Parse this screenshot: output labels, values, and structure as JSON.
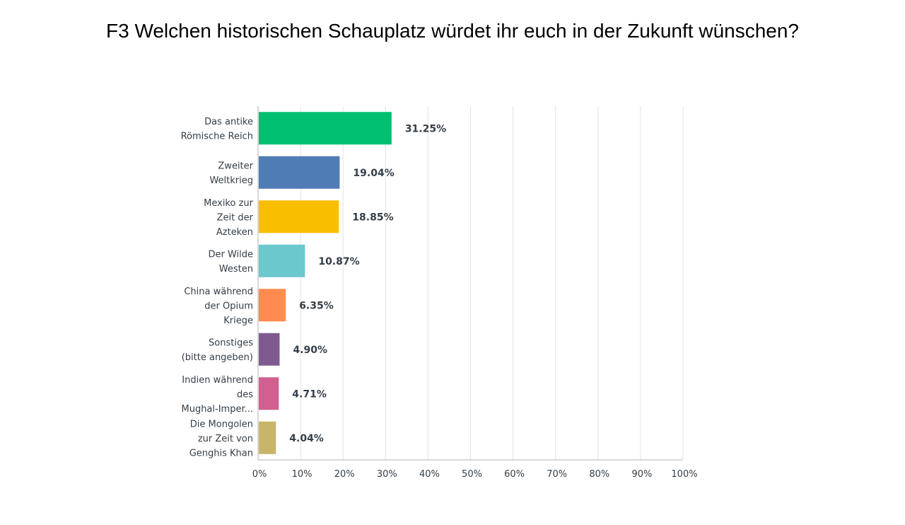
{
  "chart_data": {
    "type": "bar",
    "orientation": "horizontal",
    "title": "F3 Welchen historischen Schauplatz würdet ihr euch in der Zukunft wünschen?",
    "categories": [
      [
        "Das antike",
        "Römische Reich"
      ],
      [
        "Zweiter",
        "Weltkrieg"
      ],
      [
        "Mexiko zur",
        "Zeit der",
        "Azteken"
      ],
      [
        "Der Wilde",
        "Westen"
      ],
      [
        "China während",
        "der Opium",
        "Kriege"
      ],
      [
        "Sonstiges",
        "(bitte angeben)"
      ],
      [
        "Indien während",
        "des",
        "Mughal-Imper..."
      ],
      [
        "Die Mongolen",
        "zur Zeit von",
        "Genghis Khan"
      ]
    ],
    "values": [
      31.25,
      19.04,
      18.85,
      10.87,
      6.35,
      4.9,
      4.71,
      4.04
    ],
    "value_labels": [
      "31.25%",
      "19.04%",
      "18.85%",
      "10.87%",
      "6.35%",
      "4.90%",
      "4.71%",
      "4.04%"
    ],
    "colors": [
      "#00bf6f",
      "#507cb6",
      "#f9be00",
      "#6bc8cd",
      "#ff8b4f",
      "#7f5a90",
      "#d25f90",
      "#c8b568"
    ],
    "xlim": [
      0,
      100
    ],
    "ticks": [
      "0%",
      "10%",
      "20%",
      "30%",
      "40%",
      "50%",
      "60%",
      "70%",
      "80%",
      "90%",
      "100%"
    ],
    "grid": true,
    "legend": "none"
  }
}
